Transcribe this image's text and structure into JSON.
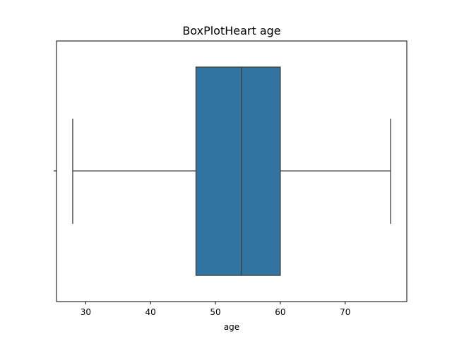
{
  "chart_data": {
    "type": "box",
    "title": "BoxPlotHeart age",
    "xlabel": "age",
    "ylabel": "",
    "orientation": "horizontal",
    "xlim": [
      25.5,
      79.5
    ],
    "x_ticks": [
      30,
      40,
      50,
      60,
      70
    ],
    "box": {
      "whisker_low": 28,
      "q1": 47,
      "median": 54,
      "q3": 60,
      "whisker_high": 77,
      "color": "#3274a1",
      "line_color": "#3d3d3d"
    },
    "grid": false
  }
}
